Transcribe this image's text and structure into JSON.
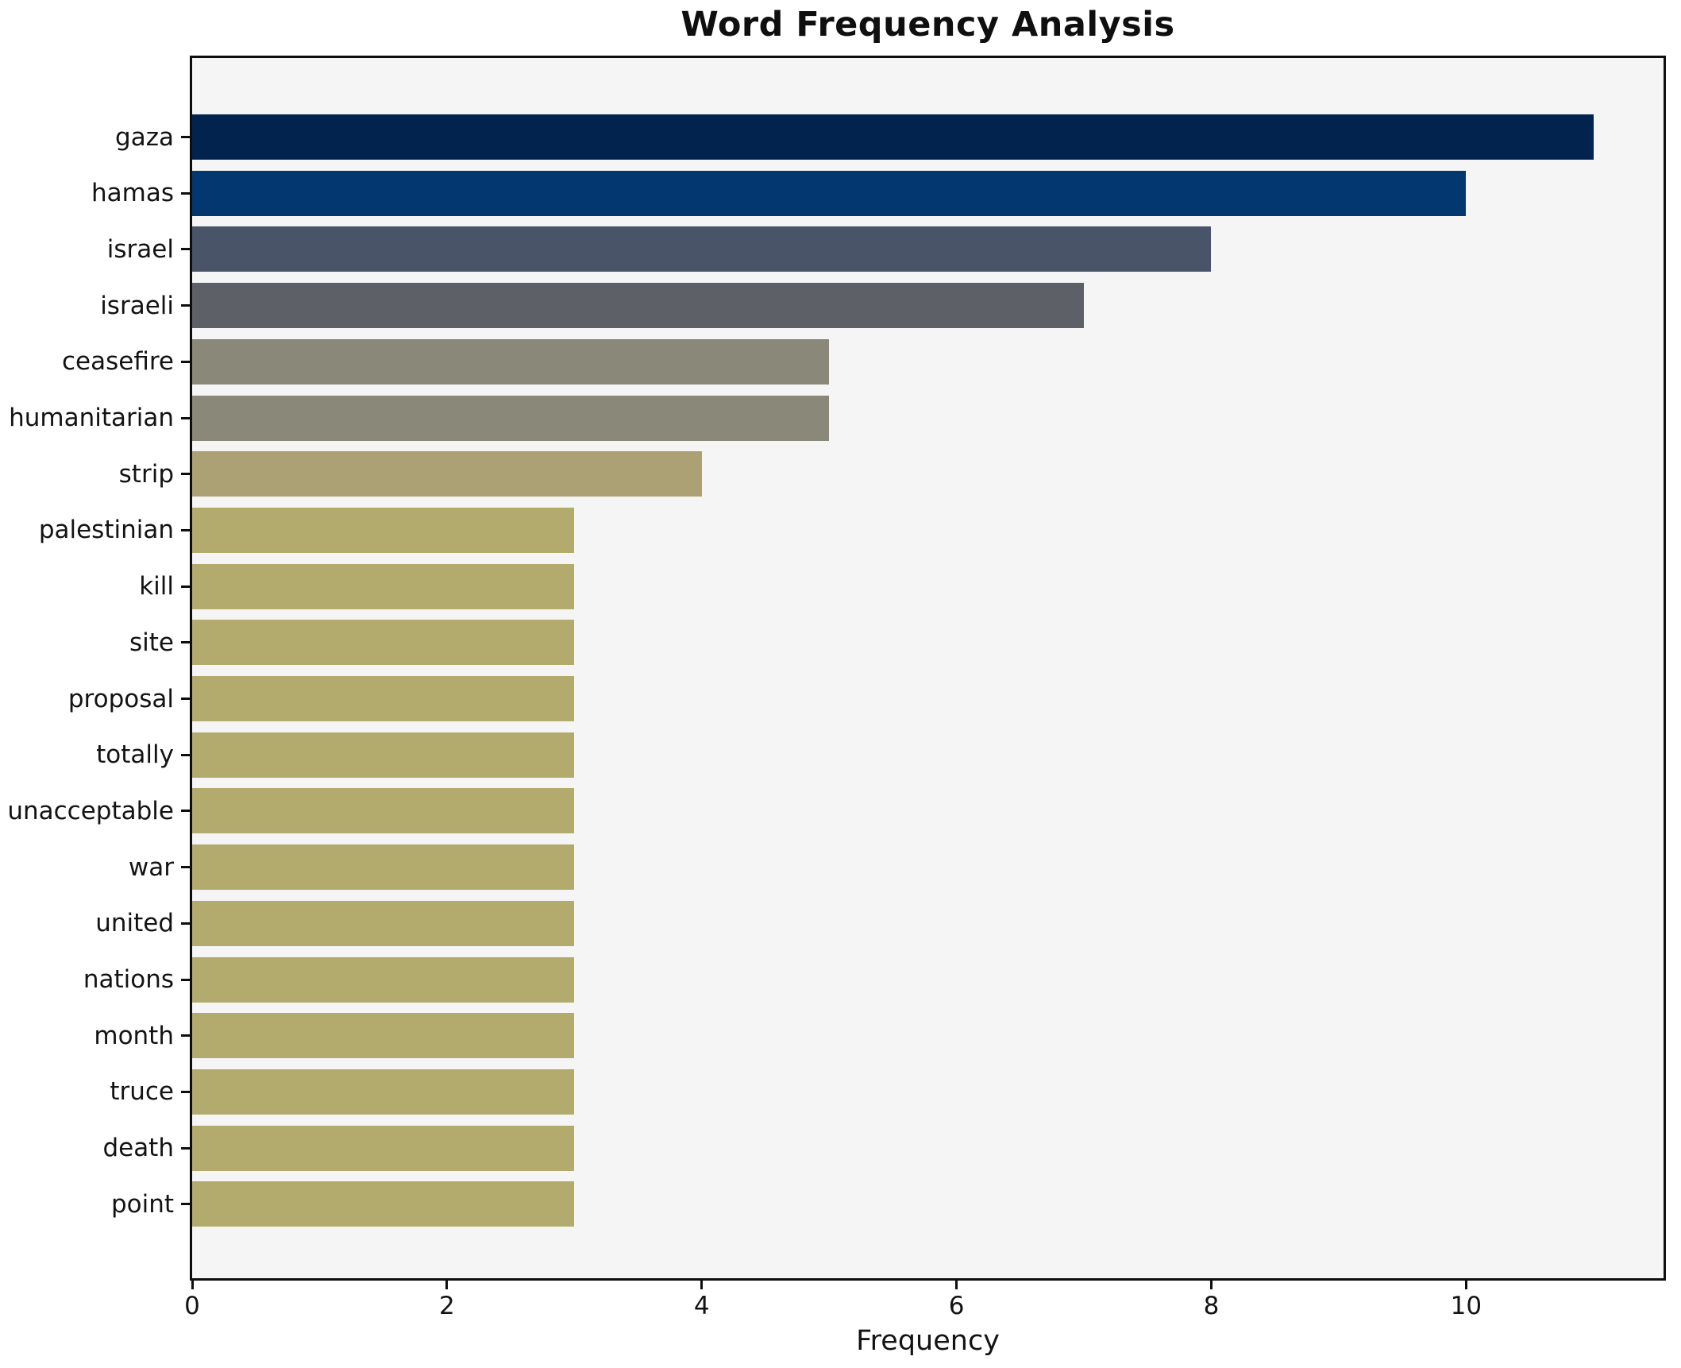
{
  "title": "Word Frequency Analysis",
  "chart_data": {
    "type": "bar",
    "orientation": "horizontal",
    "title": "Word Frequency Analysis",
    "xlabel": "Frequency",
    "ylabel": "",
    "categories": [
      "gaza",
      "hamas",
      "israel",
      "israeli",
      "ceasefire",
      "humanitarian",
      "strip",
      "palestinian",
      "kill",
      "site",
      "proposal",
      "totally",
      "unacceptable",
      "war",
      "united",
      "nations",
      "month",
      "truce",
      "death",
      "point"
    ],
    "values": [
      11,
      10,
      8,
      7,
      5,
      5,
      4,
      3,
      3,
      3,
      3,
      3,
      3,
      3,
      3,
      3,
      3,
      3,
      3,
      3
    ],
    "bar_colors": [
      "#01234e",
      "#03376f",
      "#4a5468",
      "#5d6066",
      "#8a8879",
      "#8a8879",
      "#aba174",
      "#b3aa6e",
      "#b3aa6e",
      "#b3aa6e",
      "#b3aa6e",
      "#b3aa6e",
      "#b3aa6e",
      "#b3aa6e",
      "#b3aa6e",
      "#b3aa6e",
      "#b3aa6e",
      "#b3aa6e",
      "#b3aa6e",
      "#b3aa6e"
    ],
    "xticks": [
      0,
      2,
      4,
      6,
      8,
      10
    ],
    "xtick_labels": [
      "0",
      "2",
      "4",
      "6",
      "8",
      "10"
    ],
    "xlim": [
      0,
      11.55
    ],
    "grid": false,
    "legend": "none",
    "plot_bg_color": "#f5f5f6",
    "figure_bg_color": "#ffffff",
    "spine_color": "#0e0e0e"
  }
}
